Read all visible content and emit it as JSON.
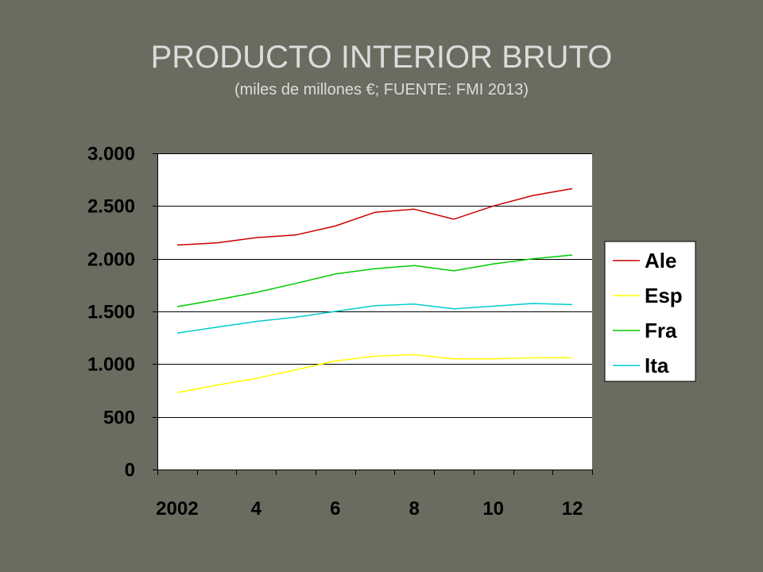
{
  "title": "PRODUCTO INTERIOR BRUTO",
  "subtitle": "(miles de millones €; FUENTE: FMI 2013)",
  "chart_data": {
    "type": "line",
    "title": "PRODUCTO INTERIOR BRUTO",
    "subtitle": "(miles de millones €; FUENTE: FMI 2013)",
    "xlabel": "",
    "ylabel": "",
    "x": [
      2002,
      2003,
      2004,
      2005,
      2006,
      2007,
      2008,
      2009,
      2010,
      2011,
      2012
    ],
    "x_tick_values": [
      2002,
      2004,
      2006,
      2008,
      2010,
      2012
    ],
    "x_tick_labels": [
      "2002",
      "4",
      "6",
      "8",
      "10",
      "12"
    ],
    "xlim": [
      2001.5,
      2012.5
    ],
    "ylim": [
      0,
      3000
    ],
    "y_tick_values": [
      0,
      500,
      1000,
      1500,
      2000,
      2500,
      3000
    ],
    "y_tick_labels": [
      "0",
      "500",
      "1.000",
      "1.500",
      "2.000",
      "2.500",
      "3.000"
    ],
    "grid": "horizontal",
    "legend_position": "right",
    "series": [
      {
        "name": "Ale",
        "color": "#cc0000",
        "values": [
          2130,
          2150,
          2200,
          2225,
          2310,
          2440,
          2470,
          2375,
          2500,
          2600,
          2665
        ]
      },
      {
        "name": "Esp",
        "color": "#ffff00",
        "values": [
          730,
          800,
          865,
          945,
          1030,
          1075,
          1090,
          1050,
          1050,
          1060,
          1060
        ]
      },
      {
        "name": "Fra",
        "color": "#00cc00",
        "values": [
          1545,
          1610,
          1680,
          1765,
          1855,
          1905,
          1935,
          1885,
          1950,
          2000,
          2035
        ]
      },
      {
        "name": "Ita",
        "color": "#00cccc",
        "values": [
          1295,
          1350,
          1405,
          1445,
          1500,
          1555,
          1570,
          1525,
          1550,
          1575,
          1565
        ]
      }
    ]
  }
}
